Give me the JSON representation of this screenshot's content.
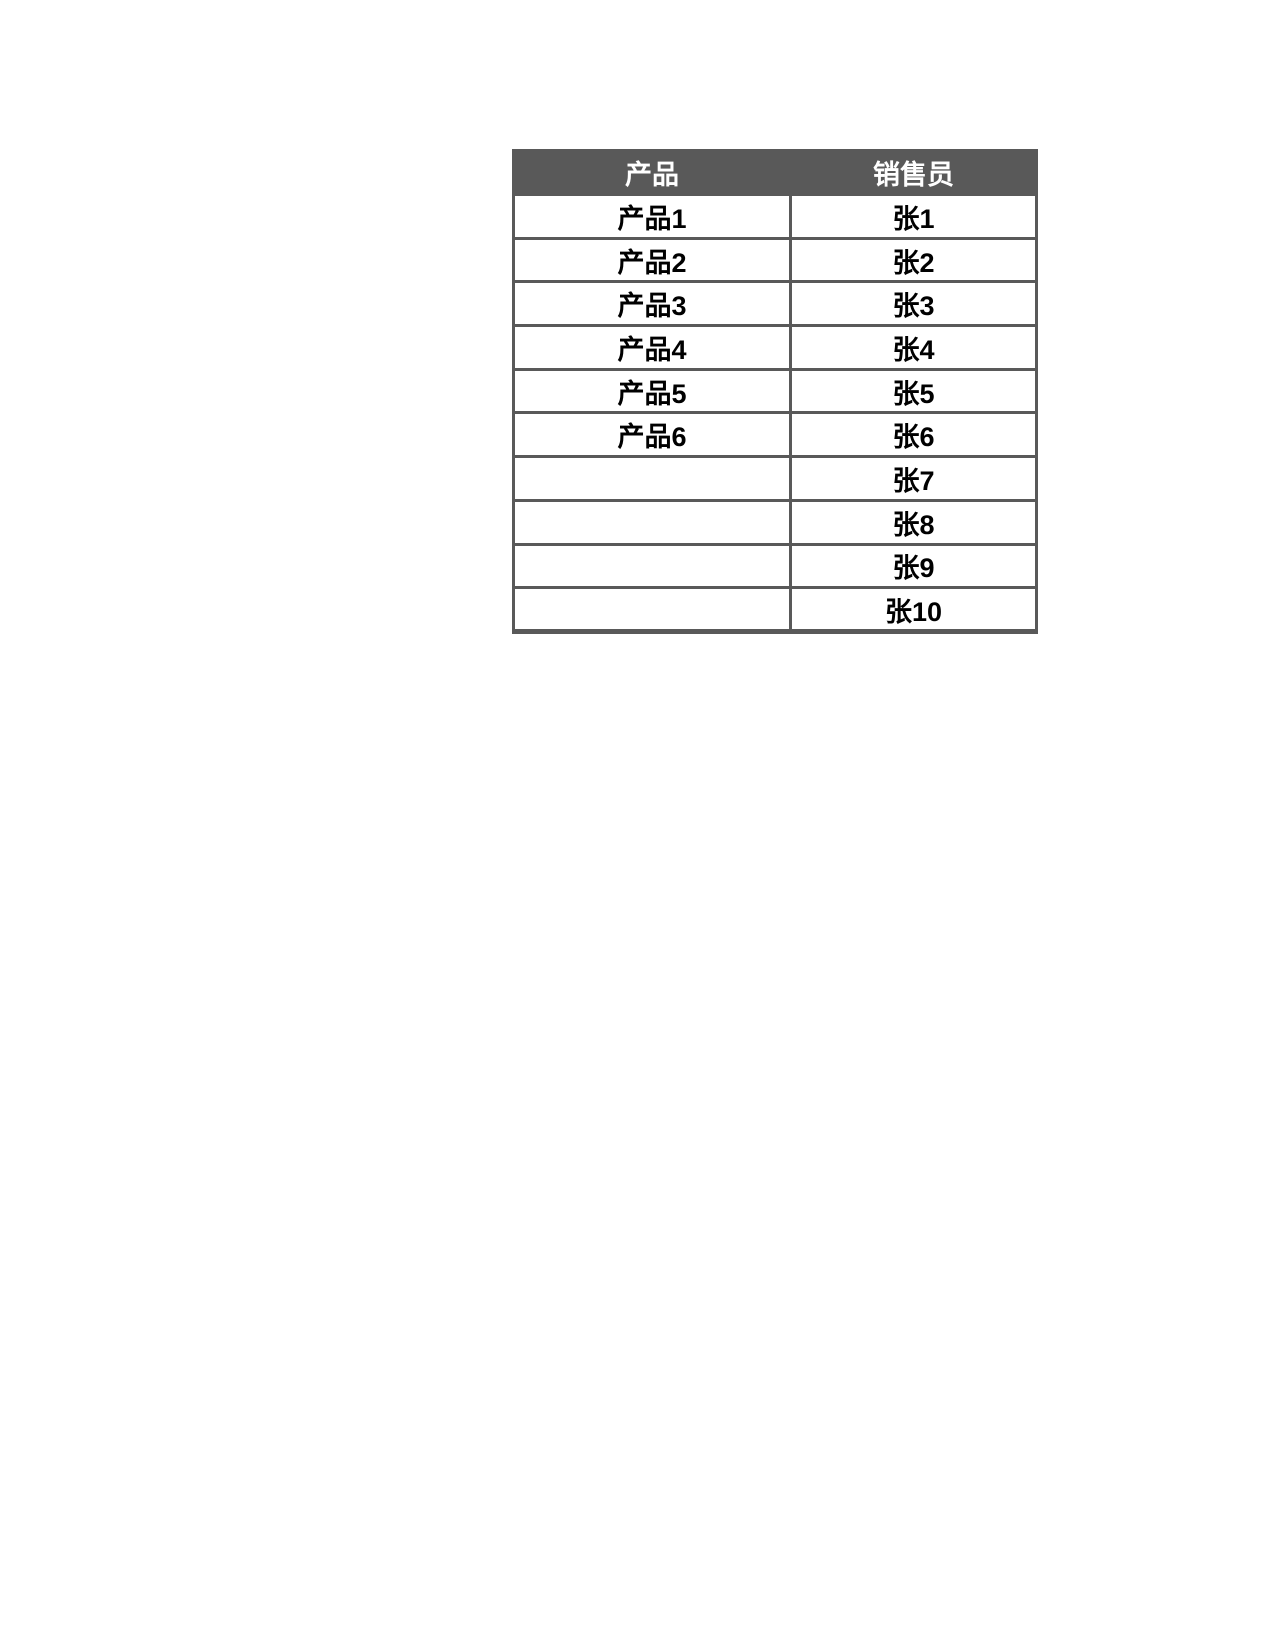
{
  "page": {
    "background_color": "#ffffff"
  },
  "colors": {
    "header_bg": "#595959",
    "header_text": "#ffffff",
    "grid_border": "#595959",
    "body_text": "#000000",
    "cell_bg": "#ffffff"
  },
  "table": {
    "header": {
      "product_label": "产品",
      "salesperson_label": "销售员"
    },
    "rows": [
      {
        "product": "产品1",
        "salesperson": "张1"
      },
      {
        "product": "产品2",
        "salesperson": "张2"
      },
      {
        "product": "产品3",
        "salesperson": "张3"
      },
      {
        "product": "产品4",
        "salesperson": "张4"
      },
      {
        "product": "产品5",
        "salesperson": "张5"
      },
      {
        "product": "产品6",
        "salesperson": "张6"
      },
      {
        "product": "",
        "salesperson": "张7"
      },
      {
        "product": "",
        "salesperson": "张8"
      },
      {
        "product": "",
        "salesperson": "张9"
      },
      {
        "product": "",
        "salesperson": "张10"
      }
    ]
  }
}
